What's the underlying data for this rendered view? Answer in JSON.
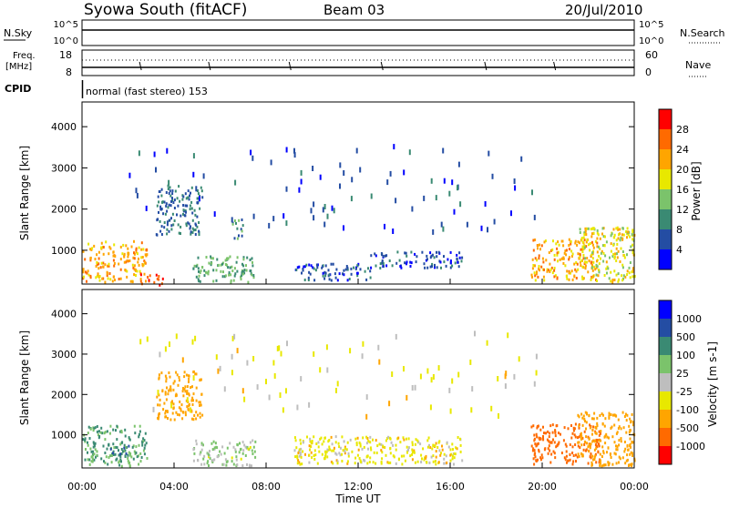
{
  "header": {
    "station": "Syowa South (fitACF)",
    "beam": "Beam 03",
    "date": "20/Jul/2010"
  },
  "nsky_panel": {
    "left_label": "N.Sky",
    "right_label": "N.Search",
    "left_ticks": [
      "10^5",
      "10^0"
    ],
    "right_ticks": [
      "10^5",
      "10^0"
    ]
  },
  "freq_panel": {
    "left_label_1": "Freq.",
    "left_label_2": "[MHz]",
    "right_label": "Nave",
    "left_ticks": [
      "18",
      "8"
    ],
    "right_ticks": [
      "60",
      "0"
    ]
  },
  "cpid_panel": {
    "label": "CPID",
    "mode_text": "normal (fast stereo) 153"
  },
  "colors": {
    "power_scale": [
      "#0000ff",
      "#244da3",
      "#3a8a73",
      "#7bc36b",
      "#e8e800",
      "#ffa500",
      "#ff6a00",
      "#ff0000"
    ],
    "velocity_scale": [
      "#0000ff",
      "#244da3",
      "#3a8a73",
      "#7bc36b",
      "#bebebe",
      "#e8e800",
      "#ffa500",
      "#ff6a00",
      "#ff0000"
    ]
  },
  "chart_data": [
    {
      "type": "heatmap",
      "panel": "power",
      "ylabel": "Slant Range [km]",
      "xlabel": "",
      "ylim": [
        180,
        4600
      ],
      "xlim": [
        0,
        24
      ],
      "y_ticks": [
        "1000",
        "2000",
        "3000",
        "4000"
      ],
      "colorbar_label": "Power [dB]",
      "colorbar_ticks": [
        "4",
        "8",
        "12",
        "16",
        "20",
        "24",
        "28"
      ],
      "features": [
        {
          "t": [
            0.0,
            2.8
          ],
          "r": [
            250,
            1250
          ],
          "v": 22
        },
        {
          "t": [
            2.5,
            3.5
          ],
          "r": [
            180,
            450
          ],
          "v": 28
        },
        {
          "t": [
            3.2,
            5.2
          ],
          "r": [
            1400,
            2600
          ],
          "v": 8
        },
        {
          "t": [
            4.8,
            7.5
          ],
          "r": [
            250,
            900
          ],
          "v": 12
        },
        {
          "t": [
            6.5,
            7.0
          ],
          "r": [
            1300,
            1800
          ],
          "v": 10
        },
        {
          "t": [
            9.2,
            12.5
          ],
          "r": [
            300,
            700
          ],
          "v": 6
        },
        {
          "t": [
            12.5,
            16.5
          ],
          "r": [
            600,
            1000
          ],
          "v": 6
        },
        {
          "t": [
            19.5,
            22.5
          ],
          "r": [
            300,
            1300
          ],
          "v": 22
        },
        {
          "t": [
            21.5,
            24.0
          ],
          "r": [
            250,
            1600
          ],
          "v": 18
        },
        {
          "t": [
            2.0,
            20.0
          ],
          "r": [
            1500,
            3600
          ],
          "v": 6
        }
      ]
    },
    {
      "type": "heatmap",
      "panel": "velocity",
      "ylabel": "Slant Range [km]",
      "xlabel": "Time UT",
      "ylim": [
        180,
        4600
      ],
      "xlim": [
        0,
        24
      ],
      "y_ticks": [
        "1000",
        "2000",
        "3000",
        "4000"
      ],
      "x_ticks": [
        "00:00",
        "04:00",
        "08:00",
        "12:00",
        "16:00",
        "20:00",
        "00:00"
      ],
      "colorbar_label": "Velocity [m s-1]",
      "colorbar_ticks": [
        "1000",
        "500",
        "100",
        "25",
        "-25",
        "-100",
        "-500",
        "-1000"
      ],
      "features": [
        {
          "t": [
            0.0,
            2.8
          ],
          "r": [
            250,
            1250
          ],
          "v": 100
        },
        {
          "t": [
            1.0,
            2.0
          ],
          "r": [
            550,
            800
          ],
          "v": 500
        },
        {
          "t": [
            3.2,
            5.2
          ],
          "r": [
            1400,
            2600
          ],
          "v": -300
        },
        {
          "t": [
            4.8,
            7.5
          ],
          "r": [
            250,
            900
          ],
          "v": 30
        },
        {
          "t": [
            9.2,
            16.5
          ],
          "r": [
            300,
            1000
          ],
          "v": -60
        },
        {
          "t": [
            19.5,
            22.5
          ],
          "r": [
            300,
            1300
          ],
          "v": -600
        },
        {
          "t": [
            21.5,
            24.0
          ],
          "r": [
            250,
            1600
          ],
          "v": -200
        },
        {
          "t": [
            2.0,
            20.0
          ],
          "r": [
            1500,
            3600
          ],
          "v": -50
        }
      ]
    }
  ]
}
